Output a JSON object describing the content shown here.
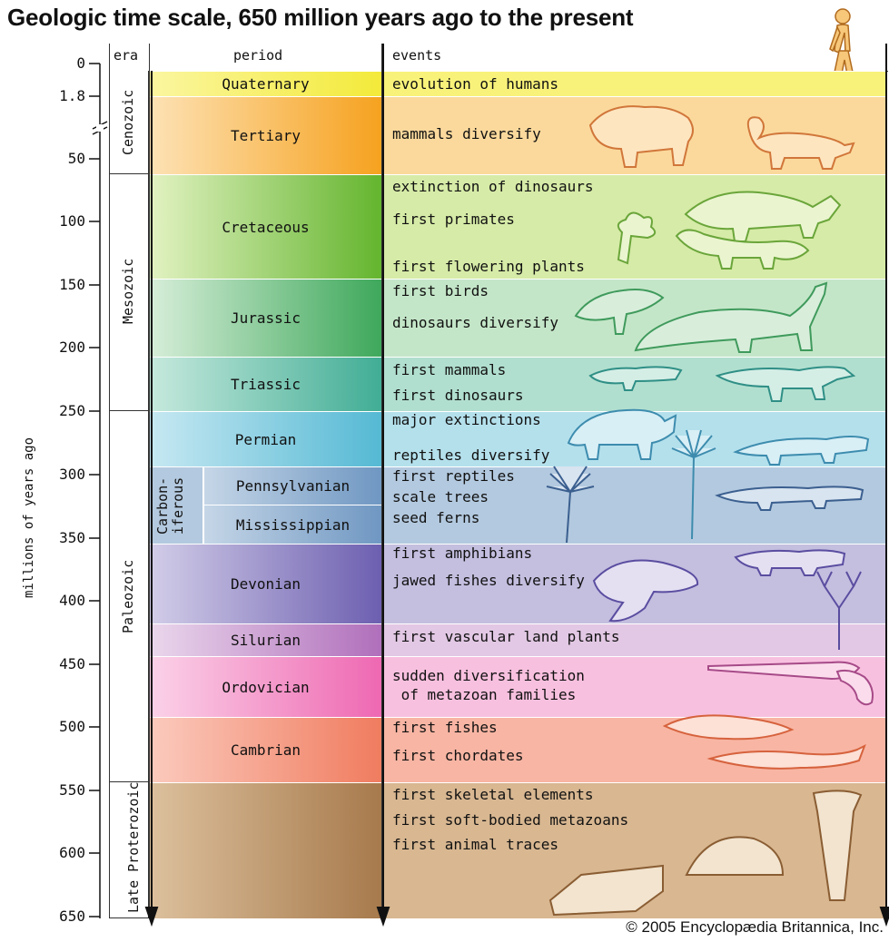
{
  "title": "Geologic time scale, 650 million years ago to the present",
  "credit": "© 2005 Encyclopædia Britannica, Inc.",
  "axis": {
    "label": "millions of years ago",
    "ticks": [
      "0",
      "1.8",
      "50",
      "100",
      "150",
      "200",
      "250",
      "300",
      "350",
      "400",
      "450",
      "500",
      "550",
      "600",
      "650"
    ]
  },
  "headers": {
    "era": "era",
    "period": "period",
    "events": "events"
  },
  "eras": [
    "Cenozoic",
    "Mesozoic",
    "Paleozoic",
    "Late Proterozoic"
  ],
  "carboniferous": [
    "Carbon-",
    "iferous"
  ],
  "periods": {
    "quaternary": "Quaternary",
    "tertiary": "Tertiary",
    "cretaceous": "Cretaceous",
    "jurassic": "Jurassic",
    "triassic": "Triassic",
    "permian": "Permian",
    "pennsylvanian": "Pennsylvanian",
    "mississippian": "Mississippian",
    "devonian": "Devonian",
    "silurian": "Silurian",
    "ordovician": "Ordovician",
    "cambrian": "Cambrian"
  },
  "events": {
    "quaternary": [
      "evolution of humans"
    ],
    "tertiary": [
      "mammals diversify"
    ],
    "cretaceous": [
      "extinction of dinosaurs",
      "first primates",
      "first flowering plants"
    ],
    "jurassic": [
      "first birds",
      "dinosaurs diversify"
    ],
    "triassic": [
      "first mammals",
      "first dinosaurs"
    ],
    "permian": [
      "major extinctions",
      "reptiles diversify"
    ],
    "carboniferous": [
      "first reptiles",
      "scale trees",
      "seed ferns"
    ],
    "devonian": [
      "first amphibians",
      "jawed fishes diversify"
    ],
    "silurian": [
      "first vascular land plants"
    ],
    "ordovician": [
      "sudden diversification",
      " of metazoan families"
    ],
    "cambrian": [
      "first fishes",
      "first chordates"
    ],
    "proterozoic": [
      "first skeletal elements",
      "first soft-bodied metazoans",
      "first animal traces"
    ]
  },
  "colors": {
    "quaternary": "#f8f27a",
    "tertiary": "#fbd99c",
    "cretaceous": "#d6eba7",
    "jurassic": "#c4e6c8",
    "triassic": "#b1dfcf",
    "permian": "#b4e0ec",
    "carboniferous": "#b3c9df",
    "devonian": "#c4bedf",
    "silurian": "#e2c8e4",
    "ordovician": "#f8c0df",
    "cambrian": "#f8b5a3",
    "proterozoic": "#d8b791"
  }
}
